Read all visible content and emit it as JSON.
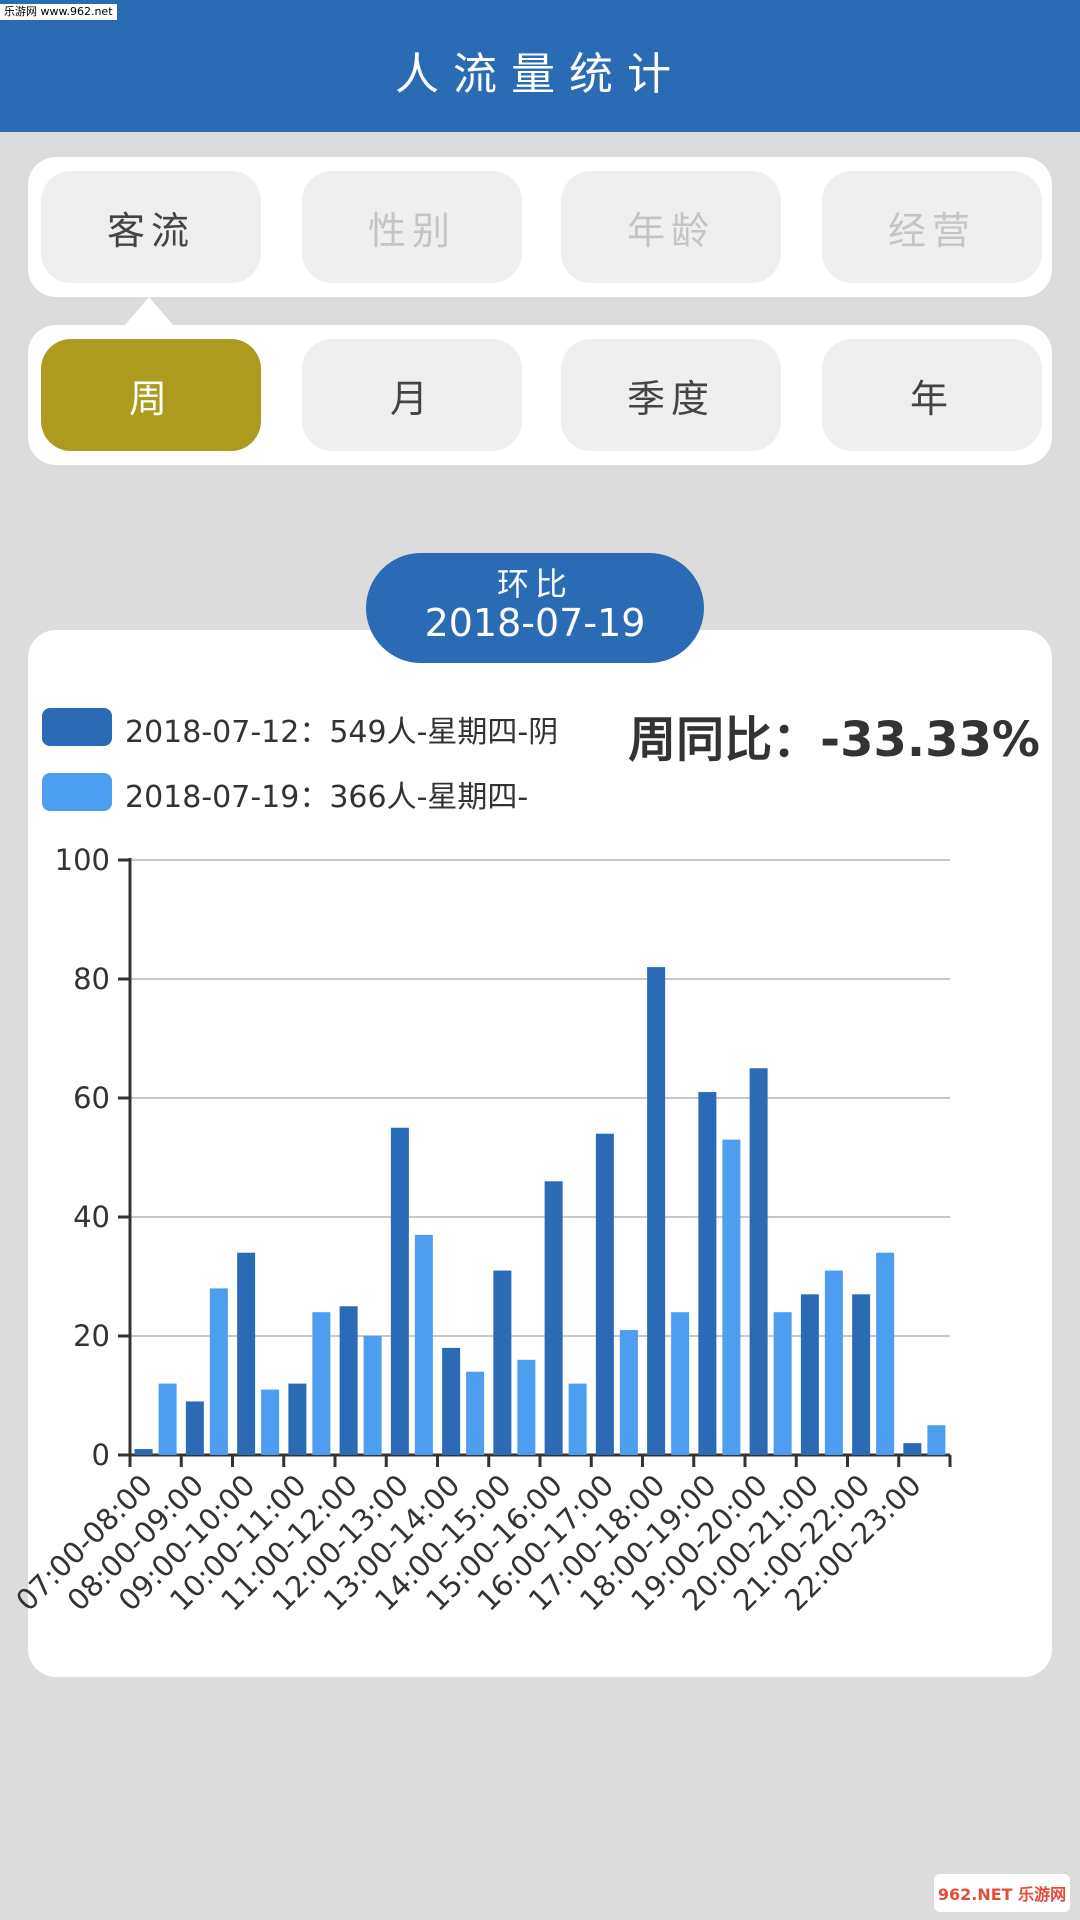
{
  "watermark_top": "乐游网 www.962.net",
  "header": {
    "title": "人流量统计"
  },
  "category_tabs": [
    {
      "label": "客流",
      "active": true
    },
    {
      "label": "性别",
      "active": false
    },
    {
      "label": "年龄",
      "active": false
    },
    {
      "label": "经营",
      "active": false
    }
  ],
  "period_tabs": [
    {
      "label": "周",
      "active": true
    },
    {
      "label": "月",
      "active": false
    },
    {
      "label": "季度",
      "active": false
    },
    {
      "label": "年",
      "active": false
    }
  ],
  "compare": {
    "label": "环比",
    "date": "2018-07-19"
  },
  "legend": [
    {
      "text": "2018-07-12：549人-星期四-阴",
      "color": "#2b6bb5"
    },
    {
      "text": "2018-07-19：366人-星期四-",
      "color": "#4d9df0"
    }
  ],
  "ratio_text": "周同比：-33.33%",
  "chart_data": {
    "type": "bar",
    "categories": [
      "07:00-08:00",
      "08:00-09:00",
      "09:00-10:00",
      "10:00-11:00",
      "11:00-12:00",
      "12:00-13:00",
      "13:00-14:00",
      "14:00-15:00",
      "15:00-16:00",
      "16:00-17:00",
      "17:00-18:00",
      "18:00-19:00",
      "19:00-20:00",
      "20:00-21:00",
      "21:00-22:00",
      "22:00-23:00"
    ],
    "series": [
      {
        "name": "2018-07-12：549人-星期四-阴",
        "color": "#2b6bb5",
        "values": [
          1,
          9,
          34,
          12,
          25,
          55,
          18,
          31,
          46,
          54,
          82,
          61,
          65,
          27,
          27,
          2
        ]
      },
      {
        "name": "2018-07-19：366人-星期四-",
        "color": "#4d9df0",
        "values": [
          12,
          28,
          11,
          24,
          20,
          37,
          14,
          16,
          12,
          21,
          24,
          53,
          24,
          31,
          34,
          5
        ]
      }
    ],
    "ylim": [
      0,
      100
    ],
    "yticks": [
      0,
      20,
      40,
      60,
      80,
      100
    ],
    "grid": true,
    "legend_position": "top-left"
  },
  "watermark_bottom": "962.NET 乐游网"
}
